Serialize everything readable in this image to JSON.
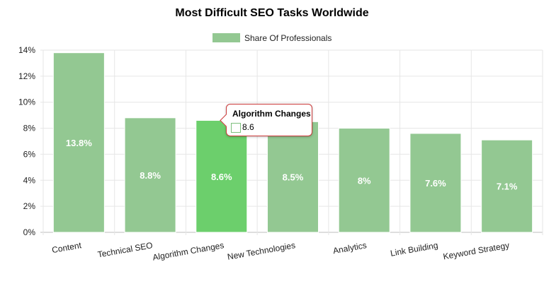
{
  "chart_data": {
    "type": "bar",
    "title": "Most Difficult SEO Tasks Worldwide",
    "categories": [
      "Content",
      "Technical SEO",
      "Algorithm Changes",
      "New Technologies",
      "Analytics",
      "Link Building",
      "Keyword Strategy"
    ],
    "series": [
      {
        "name": "Share Of Professionals",
        "values": [
          13.8,
          8.8,
          8.6,
          8.5,
          8,
          7.6,
          7.1
        ]
      }
    ],
    "data_labels": [
      "13.8%",
      "8.8%",
      "8.6%",
      "8.5%",
      "8%",
      "7.6%",
      "7.1%"
    ],
    "y_ticks": [
      "0%",
      "2%",
      "4%",
      "6%",
      "8%",
      "10%",
      "12%",
      "14%"
    ],
    "ylim": [
      0,
      14
    ],
    "grid": true,
    "legend_position": "top",
    "colors": {
      "bar": "#93c892",
      "bar_highlight": "#6ccf6c",
      "tooltip_border": "#cc3b3b"
    },
    "tooltip": {
      "title": "Algorithm Changes",
      "value": "8.6"
    }
  }
}
